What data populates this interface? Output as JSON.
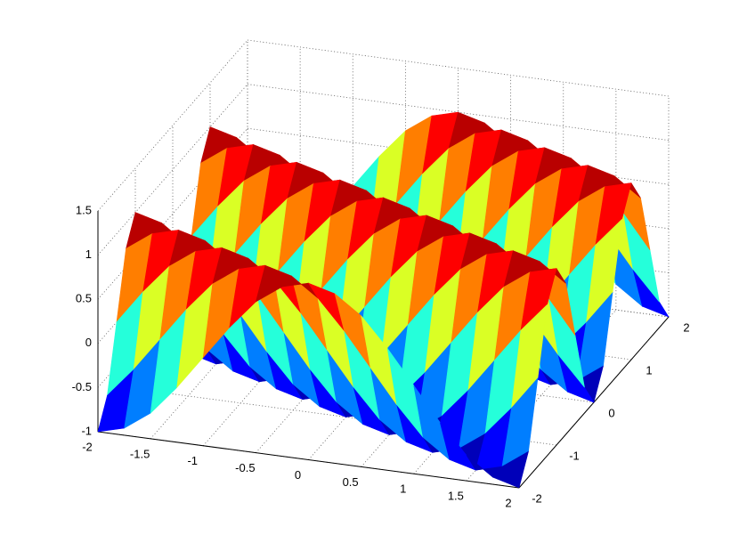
{
  "chart_data": {
    "type": "surface",
    "colormap": "jet",
    "grid": true,
    "xlim": [
      -2,
      2
    ],
    "ylim": [
      -2,
      2
    ],
    "zlim": [
      -1,
      1.5
    ],
    "xticks": [
      -2,
      -1.5,
      -1,
      -0.5,
      0,
      0.5,
      1,
      1.5,
      2
    ],
    "yticks": [
      -2,
      -1,
      0,
      1,
      2
    ],
    "zticks": [
      -1,
      -0.5,
      0,
      0.5,
      1,
      1.5
    ],
    "x": [
      -2,
      -1.75,
      -1.5,
      -1.25,
      -1,
      -0.75,
      -0.5,
      -0.25,
      0,
      0.25,
      0.5,
      0.75,
      1,
      1.25,
      1.5,
      1.75,
      2
    ],
    "y": [
      -2,
      -1.75,
      -1.5,
      -1.25,
      -1,
      -0.75,
      -0.5,
      -0.25,
      0,
      0.25,
      0.5,
      0.75,
      1,
      1.25,
      1.5,
      1.75,
      2
    ],
    "z": [
      [
        -1,
        -0.92,
        -0.71,
        -0.38,
        0,
        0.38,
        0.71,
        0.92,
        1,
        0.92,
        0.71,
        0.38,
        0,
        -0.38,
        -0.71,
        -0.92,
        -1
      ],
      [
        -0.71,
        -0.38,
        0,
        0.38,
        0.71,
        0.92,
        1,
        0.92,
        0.71,
        0.38,
        0,
        -0.38,
        -0.71,
        -0.92,
        -1,
        -0.92,
        -0.71
      ],
      [
        0,
        0.38,
        0.71,
        0.92,
        1,
        0.92,
        0.71,
        0.38,
        0,
        -0.38,
        -0.71,
        -0.92,
        -1,
        -0.92,
        -0.71,
        -0.38,
        0
      ],
      [
        0.71,
        0.92,
        1,
        0.92,
        0.71,
        0.38,
        0,
        -0.38,
        -0.71,
        -0.92,
        -1,
        -0.92,
        -0.71,
        -0.38,
        0,
        0.38,
        0.71
      ],
      [
        1,
        0.92,
        0.71,
        0.38,
        0,
        -0.38,
        -0.71,
        -0.92,
        -1,
        -0.92,
        -0.71,
        -0.38,
        0,
        0.38,
        0.71,
        0.92,
        1
      ],
      [
        0.71,
        0.38,
        0,
        -0.38,
        -0.71,
        -0.92,
        -1,
        -0.92,
        -0.71,
        -0.38,
        0,
        0.38,
        0.71,
        0.92,
        1,
        0.92,
        0.71
      ],
      [
        0,
        -0.38,
        -0.71,
        -0.92,
        -1,
        -0.92,
        -0.71,
        -0.38,
        0,
        0.38,
        0.71,
        0.92,
        1,
        0.92,
        0.71,
        0.38,
        0
      ],
      [
        -0.71,
        -0.92,
        -1,
        -0.92,
        -0.71,
        -0.38,
        0,
        0.38,
        0.71,
        0.92,
        1,
        0.92,
        0.71,
        0.38,
        0,
        -0.38,
        -0.71
      ],
      [
        -1,
        -0.92,
        -0.71,
        -0.38,
        0,
        0.38,
        0.71,
        0.92,
        1,
        0.92,
        0.71,
        0.38,
        0,
        -0.38,
        -0.71,
        -0.92,
        -1
      ],
      [
        -0.71,
        -0.38,
        0,
        0.38,
        0.71,
        0.92,
        1,
        0.92,
        0.71,
        0.38,
        0,
        -0.38,
        -0.71,
        -0.92,
        -1,
        -0.92,
        -0.71
      ],
      [
        0,
        0.38,
        0.71,
        0.92,
        1,
        0.92,
        0.71,
        0.38,
        0,
        -0.38,
        -0.71,
        -0.92,
        -1,
        -0.92,
        -0.71,
        -0.38,
        0
      ],
      [
        0.71,
        0.92,
        1,
        0.92,
        0.71,
        0.38,
        0,
        -0.38,
        -0.71,
        -0.92,
        -1,
        -0.92,
        -0.71,
        -0.38,
        0,
        0.38,
        0.71
      ],
      [
        1,
        0.92,
        0.71,
        0.38,
        0,
        -0.38,
        -0.71,
        -0.92,
        -1,
        -0.92,
        -0.71,
        -0.38,
        0,
        0.38,
        0.71,
        0.92,
        1
      ],
      [
        0.71,
        0.38,
        0,
        -0.38,
        -0.71,
        -0.92,
        -1,
        -0.92,
        -0.71,
        -0.38,
        0,
        0.38,
        0.71,
        0.92,
        1,
        0.92,
        0.71
      ],
      [
        0,
        -0.38,
        -0.71,
        -0.92,
        -1,
        -0.92,
        -0.71,
        -0.38,
        0,
        0.38,
        0.71,
        0.92,
        1,
        0.92,
        0.71,
        0.38,
        0
      ],
      [
        -0.71,
        -0.92,
        -1,
        -0.92,
        -0.71,
        -0.38,
        0,
        0.38,
        0.71,
        0.92,
        1,
        0.92,
        0.71,
        0.38,
        0,
        -0.38,
        -0.71
      ],
      [
        -1,
        -0.92,
        -0.71,
        -0.38,
        0,
        0.38,
        0.71,
        0.92,
        1,
        0.92,
        0.71,
        0.38,
        0,
        -0.38,
        -0.71,
        -0.92,
        -1
      ]
    ]
  }
}
